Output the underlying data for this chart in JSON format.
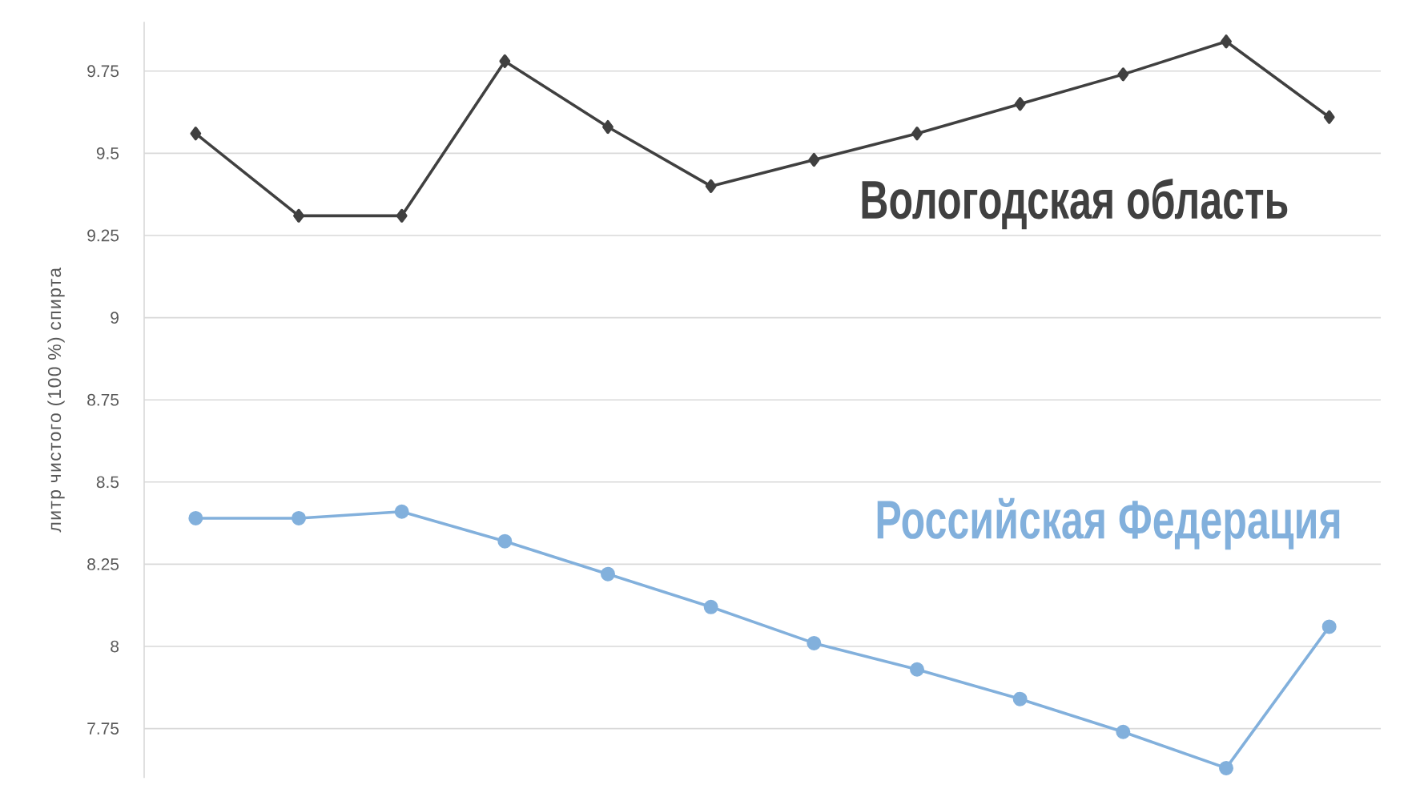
{
  "chart_data": {
    "type": "line",
    "ylabel": "литр чистого (100 %) спирта",
    "categories": [
      null,
      null,
      null,
      null,
      null,
      null,
      null,
      null,
      null,
      null,
      null,
      null
    ],
    "series": [
      {
        "name": "Вологодская область",
        "color": "#404040",
        "marker": "diamond",
        "values": [
          9.56,
          9.31,
          9.31,
          9.78,
          9.58,
          9.4,
          9.48,
          9.56,
          9.65,
          9.74,
          9.84,
          9.61
        ]
      },
      {
        "name": "Российская Федерация",
        "color": "#82b0dc",
        "marker": "circle",
        "values": [
          8.39,
          8.39,
          8.41,
          8.32,
          8.22,
          8.12,
          8.01,
          7.93,
          7.84,
          7.74,
          7.63,
          8.06
        ]
      }
    ],
    "ylim": [
      7.6,
      9.9
    ],
    "yticks": [
      7.75,
      8,
      8.25,
      8.5,
      8.75,
      9,
      9.25,
      9.5,
      9.75
    ],
    "grid": "y",
    "tick_labels": "y"
  }
}
